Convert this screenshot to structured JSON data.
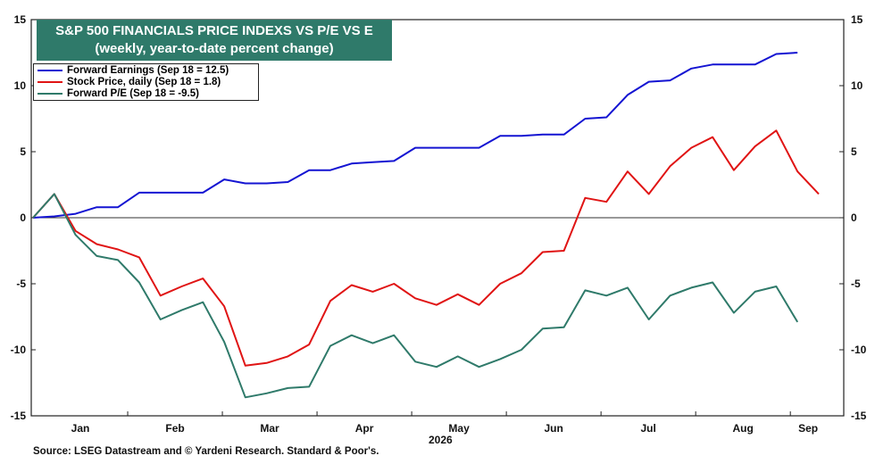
{
  "chart_data": {
    "type": "line",
    "title": "S&P 500 FINANCIALS PRICE INDEXS VS P/E VS E",
    "subtitle": "(weekly, year-to-date percent change)",
    "year_label": "2026",
    "ylim": [
      -15,
      15
    ],
    "yticks": [
      15,
      10,
      5,
      0,
      -5,
      -10,
      -15
    ],
    "months": [
      "Jan",
      "Feb",
      "Mar",
      "Apr",
      "May",
      "Jun",
      "Jul",
      "Aug",
      "Sep"
    ],
    "x_weeks_max": 37,
    "series": [
      {
        "name": "Forward Earnings (Sep 18 = 12.5)",
        "color": "#1414d2",
        "x": [
          0,
          1,
          2,
          3,
          4,
          5,
          6,
          7,
          8,
          9,
          10,
          11,
          12,
          13,
          14,
          15,
          16,
          17,
          18,
          19,
          20,
          21,
          22,
          23,
          24,
          25,
          26,
          27,
          28,
          29,
          30,
          31,
          32,
          33,
          34,
          35,
          36
        ],
        "values": [
          0,
          0.1,
          0.3,
          0.8,
          0.8,
          1.9,
          1.9,
          1.9,
          1.9,
          2.9,
          2.6,
          2.6,
          2.7,
          3.6,
          3.6,
          4.1,
          4.2,
          4.3,
          5.3,
          5.3,
          5.3,
          5.3,
          6.2,
          6.2,
          6.3,
          6.3,
          7.5,
          7.6,
          9.3,
          10.3,
          10.4,
          11.3,
          11.6,
          11.6,
          11.6,
          12.4,
          12.5
        ]
      },
      {
        "name": "Stock Price, daily (Sep 18 = 1.8)",
        "color": "#e01414",
        "x": [
          0,
          1,
          2,
          3,
          4,
          5,
          6,
          7,
          8,
          9,
          10,
          11,
          12,
          13,
          14,
          15,
          16,
          17,
          18,
          19,
          20,
          21,
          22,
          23,
          24,
          25,
          26,
          27,
          28,
          29,
          30,
          31,
          32,
          33,
          34,
          35,
          36,
          37
        ],
        "values": [
          0,
          1.8,
          -1,
          -2,
          -2.4,
          -3,
          -5.9,
          -5.2,
          -4.6,
          -6.7,
          -11.2,
          -11,
          -10.5,
          -9.6,
          -6.3,
          -5.1,
          -5.6,
          -5,
          -6.1,
          -6.6,
          -5.8,
          -6.6,
          -5,
          -4.2,
          -2.6,
          -2.5,
          1.5,
          1.2,
          3.5,
          1.8,
          3.9,
          5.3,
          6.1,
          3.6,
          5.4,
          6.6,
          3.5,
          1.8
        ]
      },
      {
        "name": "Forward P/E (Sep 18 = -9.5)",
        "color": "#2f7a6a",
        "x": [
          0,
          1,
          2,
          3,
          4,
          5,
          6,
          7,
          8,
          9,
          10,
          11,
          12,
          13,
          14,
          15,
          16,
          17,
          18,
          19,
          20,
          21,
          22,
          23,
          24,
          25,
          26,
          27,
          28,
          29,
          30,
          31,
          32,
          33,
          34,
          35,
          36
        ],
        "values": [
          0,
          1.8,
          -1.3,
          -2.9,
          -3.2,
          -4.9,
          -7.7,
          -7,
          -6.4,
          -9.4,
          -13.6,
          -13.3,
          -12.9,
          -12.8,
          -9.7,
          -8.9,
          -9.5,
          -8.9,
          -10.9,
          -11.3,
          -10.5,
          -11.3,
          -10.7,
          -10,
          -8.4,
          -8.3,
          -5.5,
          -5.9,
          -5.3,
          -7.7,
          -5.9,
          -5.3,
          -4.9,
          -7.2,
          -5.6,
          -5.2,
          -7.9
        ]
      }
    ]
  },
  "source": "Source: LSEG Datastream and © Yardeni Research. Standard & Poor's."
}
